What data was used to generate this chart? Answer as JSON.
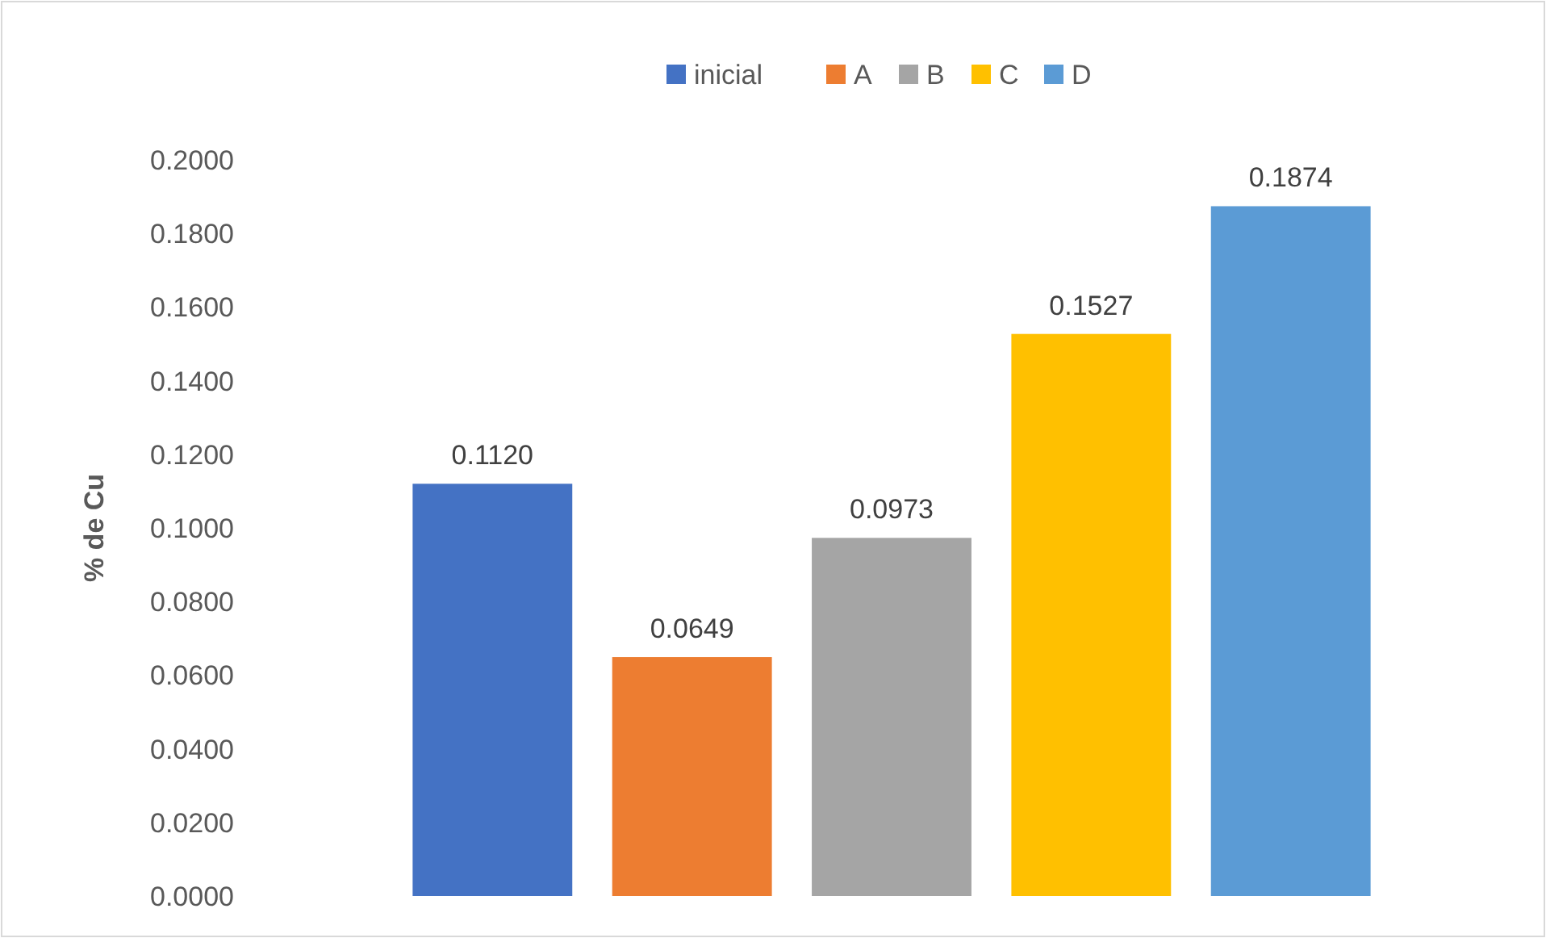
{
  "chart_data": {
    "type": "bar",
    "ylabel": "% de Cu",
    "categories": [
      null
    ],
    "series": [
      {
        "name": "inicial",
        "color": "#4472c4",
        "values": [
          0.112
        ],
        "value_labels": [
          "0.1120"
        ]
      },
      {
        "name": "A",
        "color": "#ed7d31",
        "values": [
          0.0649
        ],
        "value_labels": [
          "0.0649"
        ]
      },
      {
        "name": "B",
        "color": "#a5a5a5",
        "values": [
          0.0973
        ],
        "value_labels": [
          "0.0973"
        ]
      },
      {
        "name": "C",
        "color": "#ffc000",
        "values": [
          0.1527
        ],
        "value_labels": [
          "0.1527"
        ]
      },
      {
        "name": "D",
        "color": "#5b9bd5",
        "values": [
          0.1874
        ],
        "value_labels": [
          "0.1874"
        ]
      }
    ],
    "ylim": [
      0,
      0.2
    ],
    "yticks": [
      {
        "value": 0,
        "label": "0.0000"
      },
      {
        "value": 0.02,
        "label": "0.0200"
      },
      {
        "value": 0.04,
        "label": "0.0400"
      },
      {
        "value": 0.06,
        "label": "0.0600"
      },
      {
        "value": 0.08,
        "label": "0.0800"
      },
      {
        "value": 0.1,
        "label": "0.1000"
      },
      {
        "value": 0.12,
        "label": "0.1200"
      },
      {
        "value": 0.14,
        "label": "0.1400"
      },
      {
        "value": 0.16,
        "label": "0.1600"
      },
      {
        "value": 0.18,
        "label": "0.1800"
      },
      {
        "value": 0.2,
        "label": "0.2000"
      }
    ],
    "grid": false,
    "legend": "top"
  }
}
